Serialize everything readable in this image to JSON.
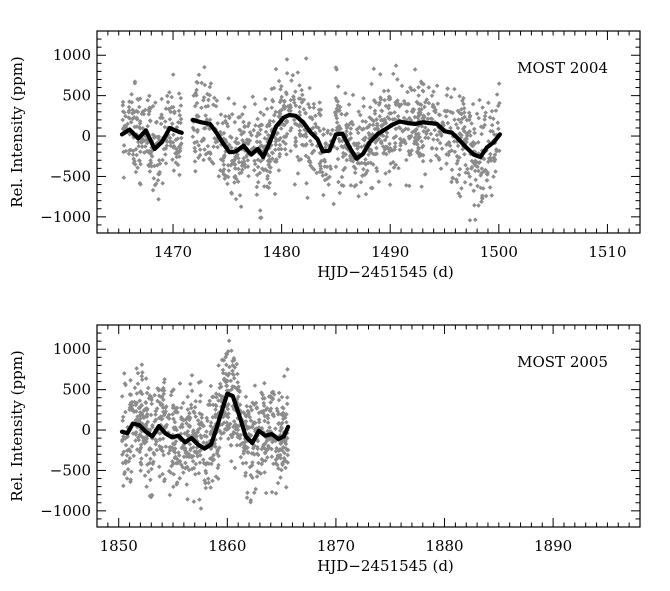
{
  "chart_data": [
    {
      "type": "scatter",
      "annotation": "MOST 2004",
      "xlabel": "HJD−2451545 (d)",
      "ylabel": "Rel. Intensity (ppm)",
      "xlim": [
        1463,
        1513
      ],
      "ylim": [
        -1200,
        1300
      ],
      "xticks": [
        1470,
        1480,
        1490,
        1500,
        1510
      ],
      "yticks": [
        -1000,
        -500,
        0,
        500,
        1000
      ],
      "point_color": "#8c8c8c",
      "line_color": "#000000",
      "observations": {
        "segments": [
          [
            1465.3,
            1470.8
          ],
          [
            1471.8,
            1500.1
          ]
        ],
        "spread_ppm": 420,
        "count": 1400
      },
      "series": [
        {
          "values_x": [
            1465.3,
            1466.0,
            1466.8,
            1467.5,
            1468.3,
            1469.0,
            1469.7,
            1470.2,
            1470.8
          ],
          "values_y": [
            20,
            80,
            -30,
            70,
            -160,
            -70,
            100,
            70,
            40
          ]
        },
        {
          "values_x": [
            1471.8,
            1472.6,
            1473.4,
            1474.0,
            1474.6,
            1475.2,
            1475.8,
            1476.5,
            1477.2,
            1477.8,
            1478.3,
            1478.8,
            1479.5,
            1480.2,
            1480.7,
            1481.3,
            1482.0,
            1482.7,
            1483.3,
            1483.8,
            1484.4,
            1485.0,
            1485.6,
            1486.3,
            1486.9,
            1487.5,
            1488.1,
            1488.8,
            1489.5,
            1490.2,
            1490.9,
            1491.6,
            1492.3,
            1493.0,
            1493.7,
            1494.3,
            1495.0,
            1495.7,
            1496.3,
            1497.0,
            1497.7,
            1498.3,
            1498.9,
            1499.5,
            1500.1
          ],
          "values_y": [
            200,
            170,
            150,
            40,
            -90,
            -200,
            -190,
            -120,
            -230,
            -160,
            -260,
            -110,
            120,
            230,
            260,
            250,
            170,
            40,
            -40,
            -190,
            -180,
            20,
            30,
            -150,
            -280,
            -220,
            -80,
            20,
            80,
            140,
            180,
            160,
            150,
            170,
            160,
            150,
            60,
            40,
            -40,
            -140,
            -230,
            -260,
            -140,
            -80,
            20
          ]
        }
      ]
    },
    {
      "type": "scatter",
      "annotation": "MOST 2005",
      "xlabel": "HJD−2451545 (d)",
      "ylabel": "Rel. Intensity (ppm)",
      "xlim": [
        1848,
        1898
      ],
      "ylim": [
        -1200,
        1300
      ],
      "xticks": [
        1850,
        1860,
        1870,
        1880,
        1890
      ],
      "yticks": [
        -1000,
        -500,
        0,
        500,
        1000
      ],
      "point_color": "#8c8c8c",
      "line_color": "#000000",
      "observations": {
        "segments": [
          [
            1850.3,
            1865.6
          ]
        ],
        "spread_ppm": 430,
        "count": 900
      },
      "series": [
        {
          "values_x": [
            1850.3,
            1850.8,
            1851.3,
            1851.9,
            1852.5,
            1853.1,
            1853.7,
            1854.3,
            1854.9,
            1855.5,
            1856.1,
            1856.7,
            1857.3,
            1857.9,
            1858.5,
            1859.0,
            1859.5,
            1860.0,
            1860.5,
            1861.1,
            1861.7,
            1862.3,
            1862.9,
            1863.5,
            1864.1,
            1864.7,
            1865.2,
            1865.6
          ],
          "values_y": [
            -20,
            -40,
            80,
            60,
            -20,
            -80,
            50,
            -40,
            -90,
            -70,
            -150,
            -100,
            -180,
            -230,
            -180,
            20,
            240,
            450,
            420,
            180,
            -80,
            -160,
            -10,
            -70,
            -50,
            -110,
            -80,
            40
          ]
        }
      ]
    }
  ]
}
